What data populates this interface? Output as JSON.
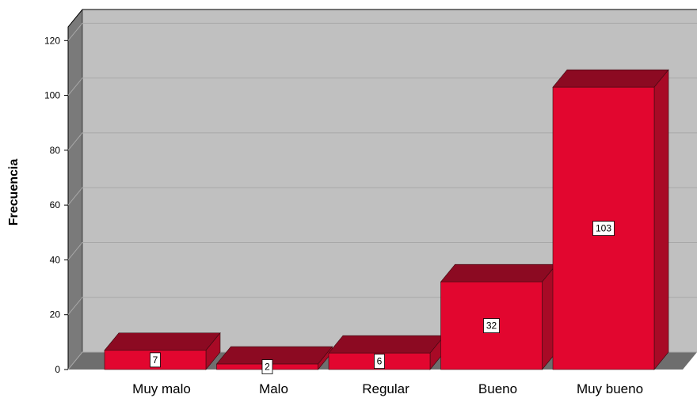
{
  "chart_data": {
    "type": "bar",
    "categories": [
      "Muy malo",
      "Malo",
      "Regular",
      "Bueno",
      "Muy bueno"
    ],
    "values": [
      7,
      2,
      6,
      32,
      103
    ],
    "data_labels": [
      "7",
      "2",
      "6",
      "32",
      "103"
    ],
    "ylabel": "Frecuencia",
    "ylim": [
      0,
      125
    ],
    "yticks": [
      "0",
      "20",
      "40",
      "60",
      "80",
      "100",
      "120"
    ],
    "grid": true,
    "style": "3d",
    "colors": {
      "bar_front": "#e2062f",
      "bar_top": "#8c0a22",
      "bar_side": "#a80a26",
      "wall": "#c0c0c0",
      "wall_side": "#7a7a7a",
      "floor": "#6e6e6e",
      "grid": "#a8a8a8"
    }
  }
}
